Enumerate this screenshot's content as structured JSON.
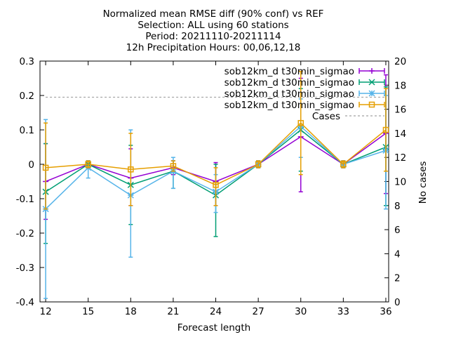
{
  "chart_data": {
    "type": "line",
    "title_lines": [
      "Normalized mean RMSE diff (90% conf) vs REF",
      "Selection: ALL using    60 stations",
      "Period: 20211110-20211114",
      "12h Precipitation   Hours: 00,06,12,18"
    ],
    "xlabel": "Forecast length",
    "ylabel_right": "No cases",
    "x_ticks": [
      12,
      15,
      18,
      21,
      24,
      27,
      30,
      33,
      36
    ],
    "x_tick_labels": [
      "12",
      "15",
      "18",
      "21",
      "24",
      "27",
      "30",
      "33",
      "36"
    ],
    "xlim": [
      11.6,
      36.2
    ],
    "ylim": [
      -0.4,
      0.3
    ],
    "y_ticks": [
      -0.4,
      -0.3,
      -0.2,
      -0.1,
      0,
      0.1,
      0.2,
      0.3
    ],
    "y_tick_labels": [
      "-0.4",
      "-0.3",
      "-0.2",
      "-0.1",
      "0",
      "0.1",
      "0.2",
      "0.3"
    ],
    "y2lim": [
      0,
      20
    ],
    "y2_ticks": [
      0,
      2,
      4,
      6,
      8,
      10,
      12,
      14,
      16,
      18,
      20
    ],
    "y2_tick_labels": [
      "0",
      "2",
      "4",
      "6",
      "8",
      "10",
      "12",
      "14",
      "16",
      "18",
      "20"
    ],
    "legend_position": "top-right",
    "series": [
      {
        "name": "sob12km_d t30min_sigmao",
        "color": "#9400d3",
        "marker": "plus",
        "x": [
          12,
          15,
          18,
          21,
          24,
          27,
          30,
          33,
          36
        ],
        "y": [
          -0.05,
          0.0,
          -0.04,
          -0.01,
          -0.05,
          0.0,
          0.08,
          0.0,
          0.09
        ],
        "err_low": [
          -0.16,
          -0.01,
          -0.12,
          -0.03,
          -0.12,
          -0.01,
          -0.08,
          -0.01,
          -0.085
        ],
        "err_high": [
          0.06,
          0.01,
          0.045,
          0.01,
          0.005,
          0.01,
          0.25,
          0.01,
          0.26
        ]
      },
      {
        "name": "sob12km_d t30min_sigmao",
        "color": "#009e73",
        "marker": "x",
        "x": [
          12,
          15,
          18,
          21,
          24,
          27,
          30,
          33,
          36
        ],
        "y": [
          -0.08,
          0.0,
          -0.06,
          -0.02,
          -0.09,
          0.0,
          0.1,
          0.0,
          0.05
        ],
        "err_low": [
          -0.23,
          -0.01,
          -0.175,
          -0.07,
          -0.21,
          -0.01,
          -0.02,
          -0.01,
          -0.12
        ],
        "err_high": [
          0.06,
          0.01,
          0.055,
          0.01,
          -0.0,
          0.01,
          0.22,
          0.01,
          0.225
        ]
      },
      {
        "name": "sob12km_d t30min_sigmao",
        "color": "#56b4e9",
        "marker": "star",
        "x": [
          12,
          15,
          18,
          21,
          24,
          27,
          30,
          33,
          36
        ],
        "y": [
          -0.13,
          -0.01,
          -0.09,
          -0.02,
          -0.08,
          0.0,
          0.11,
          0.0,
          0.04
        ],
        "err_low": [
          -0.39,
          -0.04,
          -0.27,
          -0.07,
          -0.14,
          -0.01,
          0.02,
          -0.01,
          -0.13
        ],
        "err_high": [
          0.13,
          0.01,
          0.1,
          0.02,
          -0.03,
          0.01,
          0.19,
          0.01,
          0.2
        ]
      },
      {
        "name": "sob12km_d t30min_sigmao",
        "color": "#e69f00",
        "marker": "square",
        "x": [
          12,
          15,
          18,
          21,
          24,
          27,
          30,
          33,
          36
        ],
        "y": [
          -0.01,
          0.0,
          -0.015,
          -0.005,
          -0.06,
          0.0,
          0.12,
          0.0,
          0.1
        ],
        "err_low": [
          -0.13,
          -0.01,
          -0.12,
          -0.02,
          -0.12,
          -0.01,
          -0.03,
          -0.01,
          -0.02
        ],
        "err_high": [
          0.12,
          0.01,
          0.09,
          0.01,
          -0.01,
          0.01,
          0.27,
          0.01,
          0.22
        ]
      }
    ],
    "cases_series": {
      "name": "Cases",
      "color": "#a0a0a0",
      "dashed": true,
      "x": [
        12,
        36
      ],
      "y": [
        17,
        17
      ]
    }
  }
}
